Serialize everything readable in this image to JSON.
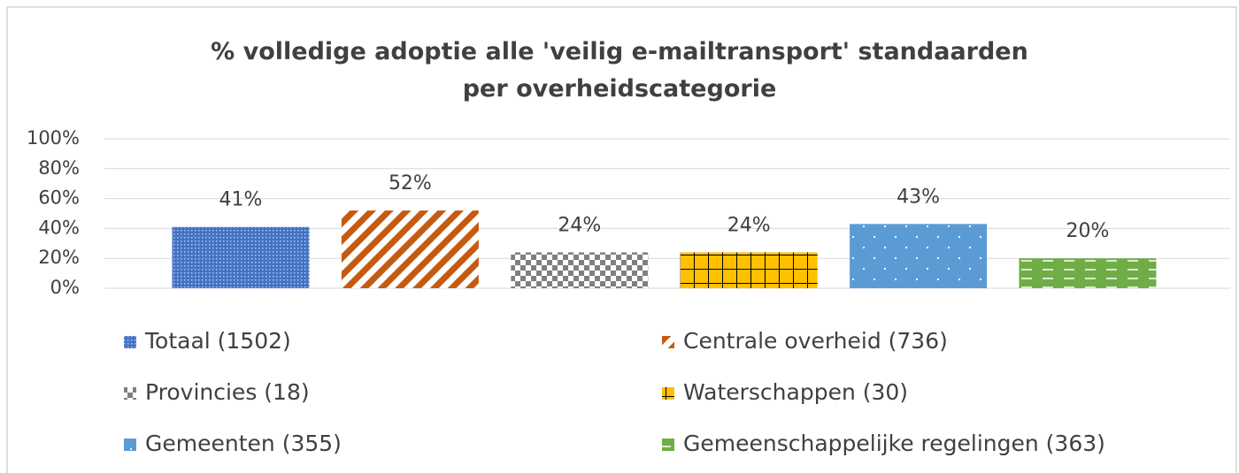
{
  "chart_data": {
    "type": "bar",
    "title": "% volledige adoptie alle 'veilig e-mailtransport' standaarden per overheidscategorie",
    "series": [
      {
        "name": "Totaal (1502)",
        "color": "#4472c4",
        "values": [
          41
        ],
        "value_labels": [
          "41%"
        ]
      },
      {
        "name": "Centrale overheid (736)",
        "color": "#c55a11",
        "values": [
          52
        ],
        "value_labels": [
          "52%"
        ]
      },
      {
        "name": "Provincies (18)",
        "color": "#7f7f7f",
        "values": [
          24
        ],
        "value_labels": [
          "24%"
        ]
      },
      {
        "name": "Waterschappen (30)",
        "color": "#ffc000",
        "values": [
          24
        ],
        "value_labels": [
          "24%"
        ]
      },
      {
        "name": "Gemeenten (355)",
        "color": "#5b9bd5",
        "values": [
          43
        ],
        "value_labels": [
          "43%"
        ]
      },
      {
        "name": "Gemeenschappelijke regelingen (363)",
        "color": "#70ad47",
        "values": [
          20
        ],
        "value_labels": [
          "20%"
        ]
      }
    ],
    "ylim": [
      0,
      100
    ],
    "yticks": [
      {
        "value": 0,
        "label": "0%"
      },
      {
        "value": 20,
        "label": "20%"
      },
      {
        "value": 40,
        "label": "40%"
      },
      {
        "value": 60,
        "label": "60%"
      },
      {
        "value": 80,
        "label": "80%"
      },
      {
        "value": 100,
        "label": "100%"
      }
    ],
    "grid": true,
    "legend": "bottom"
  }
}
